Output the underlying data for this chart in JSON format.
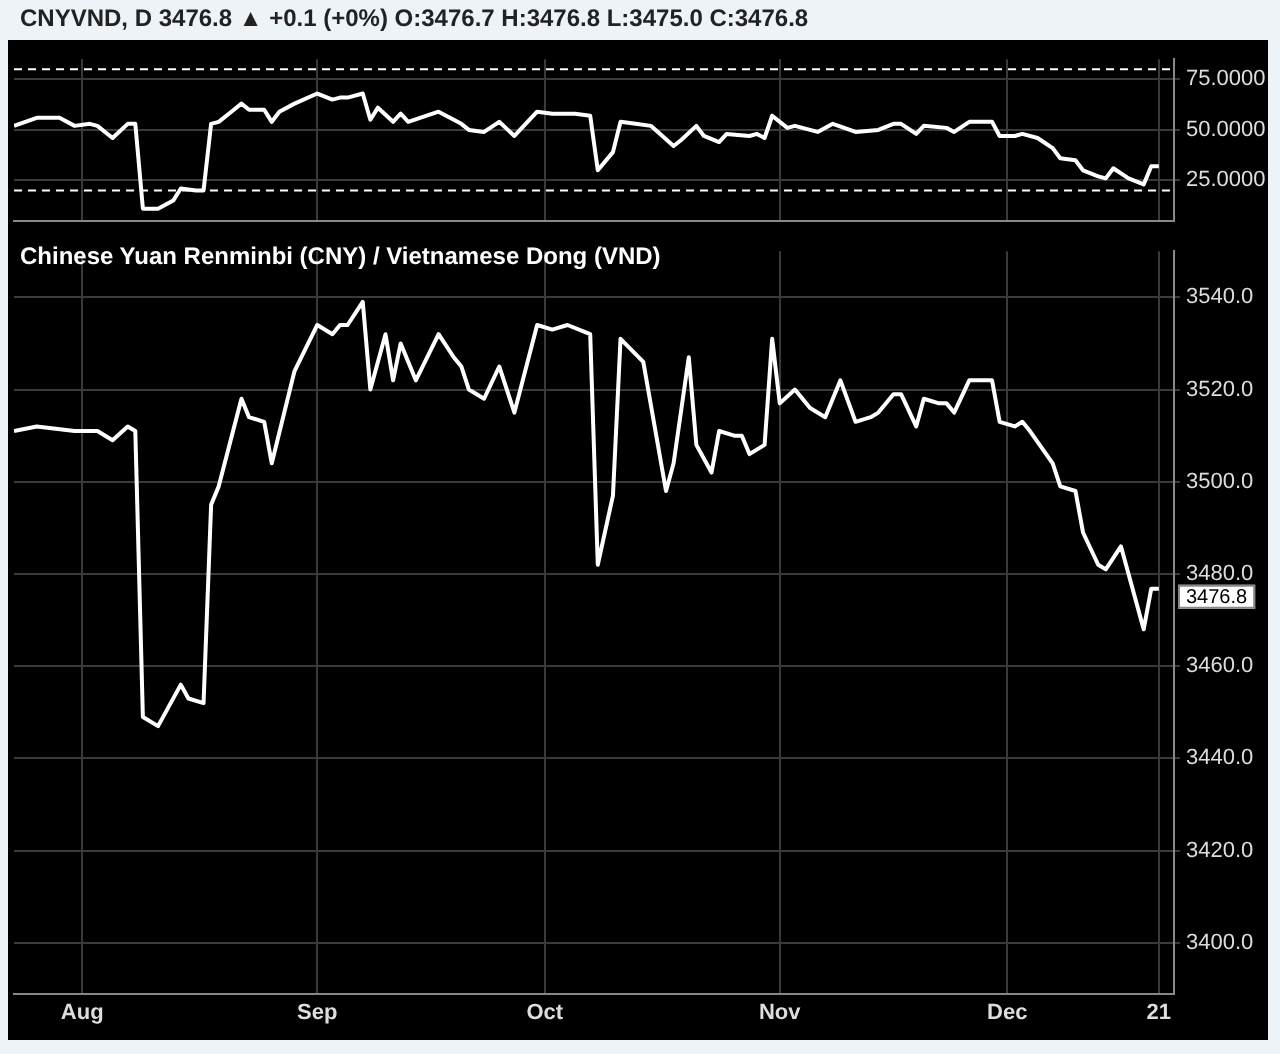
{
  "chart_data": [
    {
      "type": "line",
      "title": "CNYVND, D 3476.8 ▲ +0.1 (+0%) O:3476.7 H:3476.8 L:3475.0 C:3476.8",
      "color": "#ffffff",
      "grid": true,
      "tick_labels": "y",
      "x": [
        "--07-23",
        "--07-26",
        "--07-29",
        "--07-31",
        "--08-02",
        "--08-03",
        "--08-05",
        "--08-07",
        "--08-08",
        "--08-09",
        "--08-11",
        "--08-13",
        "--08-14",
        "--08-16",
        "--08-17",
        "--08-18",
        "--08-19",
        "--08-21",
        "--08-22",
        "--08-23",
        "--08-25",
        "--08-26",
        "--08-27",
        "--08-29",
        "--09-01",
        "--09-03",
        "--09-04",
        "--09-05",
        "--09-07",
        "--09-08",
        "--09-09",
        "--09-11",
        "--09-12",
        "--09-13",
        "--09-17",
        "--09-19",
        "--09-20",
        "--09-21",
        "--09-23",
        "--09-25",
        "--09-27",
        "--09-30",
        "--10-02",
        "--10-05",
        "--10-07",
        "--10-08",
        "--10-10",
        "--10-11",
        "--10-13",
        "--10-15",
        "--10-18",
        "--10-19",
        "--10-21",
        "--10-22",
        "--10-24",
        "--10-25",
        "--10-28",
        "--10-29",
        "--10-30",
        "--10-31",
        "--11-02",
        "--11-03",
        "--11-04",
        "--11-06",
        "--11-08",
        "--11-11",
        "--11-14",
        "--11-16",
        "--11-17",
        "--11-19",
        "--11-20",
        "--11-23",
        "--11-24",
        "--11-26",
        "--11-29",
        "--11-30",
        "--12-02",
        "--12-03",
        "--12-05",
        "--12-07",
        "--12-08",
        "--12-10",
        "--12-11",
        "--12-13",
        "--12-14",
        "--12-15",
        "--12-17",
        "--12-19",
        "--12-20",
        "--12-21"
      ],
      "values": [
        52,
        56,
        56,
        52,
        53,
        52,
        46,
        53,
        53,
        11,
        11,
        15,
        21,
        20,
        20,
        53,
        54,
        60,
        63,
        60,
        60,
        54,
        59,
        63,
        68,
        65,
        66,
        66,
        68,
        55,
        61,
        54,
        58,
        54,
        59,
        55,
        53,
        50,
        49,
        54,
        47,
        59,
        58,
        58,
        57,
        30,
        39,
        54,
        53,
        52,
        42,
        45,
        52,
        47,
        44,
        48,
        47,
        48,
        46,
        57,
        51,
        52,
        51,
        49,
        53,
        49,
        50,
        53,
        53,
        48,
        52,
        51,
        49,
        54,
        54,
        47,
        47,
        48,
        46,
        41,
        36,
        35,
        30,
        27,
        26,
        31,
        26,
        23,
        32,
        32
      ],
      "xlim": [
        "--07-23",
        "--12-23"
      ],
      "xticks": [
        {
          "value": "--08-01",
          "label": null
        },
        {
          "value": "--09-01",
          "label": null
        },
        {
          "value": "--10-01",
          "label": null
        },
        {
          "value": "--11-01",
          "label": null
        },
        {
          "value": "--12-01",
          "label": null
        },
        {
          "value": "--12-21",
          "label": null
        }
      ],
      "ylim": [
        5,
        85
      ],
      "yticks": [
        {
          "value": 25,
          "label": "25.0000"
        },
        {
          "value": 50,
          "label": "50.0000"
        },
        {
          "value": 75,
          "label": "75.0000"
        }
      ],
      "ref_lines": [
        {
          "axis": "y",
          "value": 80,
          "color": "#ffffff",
          "line_style": "dashed"
        },
        {
          "axis": "y",
          "value": 20,
          "color": "#ffffff",
          "line_style": "dashed"
        }
      ]
    },
    {
      "type": "line",
      "title": "Chinese Yuan Renminbi (CNY) / Vietnamese Dong (VND)",
      "color": "#ffffff",
      "grid": true,
      "x": [
        "--07-23",
        "--07-26",
        "--07-31",
        "--08-03",
        "--08-05",
        "--08-07",
        "--08-08",
        "--08-09",
        "--08-11",
        "--08-14",
        "--08-15",
        "--08-17",
        "--08-18",
        "--08-19",
        "--08-22",
        "--08-23",
        "--08-25",
        "--08-26",
        "--08-29",
        "--09-01",
        "--09-03",
        "--09-04",
        "--09-05",
        "--09-07",
        "--09-08",
        "--09-10",
        "--09-11",
        "--09-12",
        "--09-14",
        "--09-17",
        "--09-19",
        "--09-20",
        "--09-21",
        "--09-23",
        "--09-25",
        "--09-27",
        "--09-30",
        "--10-02",
        "--10-04",
        "--10-07",
        "--10-08",
        "--10-10",
        "--10-11",
        "--10-14",
        "--10-17",
        "--10-18",
        "--10-20",
        "--10-21",
        "--10-23",
        "--10-24",
        "--10-26",
        "--10-27",
        "--10-28",
        "--10-30",
        "--10-31",
        "--11-01",
        "--11-03",
        "--11-05",
        "--11-07",
        "--11-09",
        "--11-11",
        "--11-13",
        "--11-14",
        "--11-16",
        "--11-17",
        "--11-19",
        "--11-20",
        "--11-22",
        "--11-23",
        "--11-24",
        "--11-26",
        "--11-29",
        "--11-30",
        "--12-02",
        "--12-03",
        "--12-04",
        "--12-07",
        "--12-08",
        "--12-10",
        "--12-11",
        "--12-13",
        "--12-14",
        "--12-16",
        "--12-19",
        "--12-20",
        "--12-21"
      ],
      "values": [
        3511,
        3512,
        3511,
        3511,
        3509,
        3512,
        3511,
        3449,
        3447,
        3456,
        3453,
        3452,
        3495,
        3499,
        3518,
        3514,
        3513,
        3504,
        3524,
        3534,
        3532,
        3534,
        3534,
        3539,
        3520,
        3532,
        3522,
        3530,
        3522,
        3532,
        3527,
        3525,
        3520,
        3518,
        3525,
        3515,
        3534,
        3533,
        3534,
        3532,
        3482,
        3497,
        3531,
        3526,
        3498,
        3504,
        3527,
        3508,
        3502,
        3511,
        3510,
        3510,
        3506,
        3508,
        3531,
        3517,
        3520,
        3516,
        3514,
        3522,
        3513,
        3514,
        3515,
        3519,
        3519,
        3512,
        3518,
        3517,
        3517,
        3515,
        3522,
        3522,
        3513,
        3512,
        3513,
        3511,
        3504,
        3499,
        3498,
        3489,
        3482,
        3481,
        3486,
        3468,
        3476.8,
        3476.8
      ],
      "xlim": [
        "--07-23",
        "--12-23"
      ],
      "xticks": [
        {
          "value": "--08-01",
          "label": "Aug"
        },
        {
          "value": "--09-01",
          "label": "Sep"
        },
        {
          "value": "--10-01",
          "label": "Oct"
        },
        {
          "value": "--11-01",
          "label": "Nov"
        },
        {
          "value": "--12-01",
          "label": "Dec"
        },
        {
          "value": "--12-21",
          "label": "21"
        }
      ],
      "ylim": [
        3389,
        3550
      ],
      "yticks": [
        {
          "value": 3400,
          "label": "3400.0"
        },
        {
          "value": 3420,
          "label": "3420.0"
        },
        {
          "value": 3440,
          "label": "3440.0"
        },
        {
          "value": 3460,
          "label": "3460.0"
        },
        {
          "value": 3480,
          "label": "3480.0"
        },
        {
          "value": 3500,
          "label": "3500.0"
        },
        {
          "value": 3520,
          "label": "3520.0"
        },
        {
          "value": 3540,
          "label": "3540.0"
        }
      ],
      "annotations": [
        "3476.8"
      ]
    }
  ]
}
